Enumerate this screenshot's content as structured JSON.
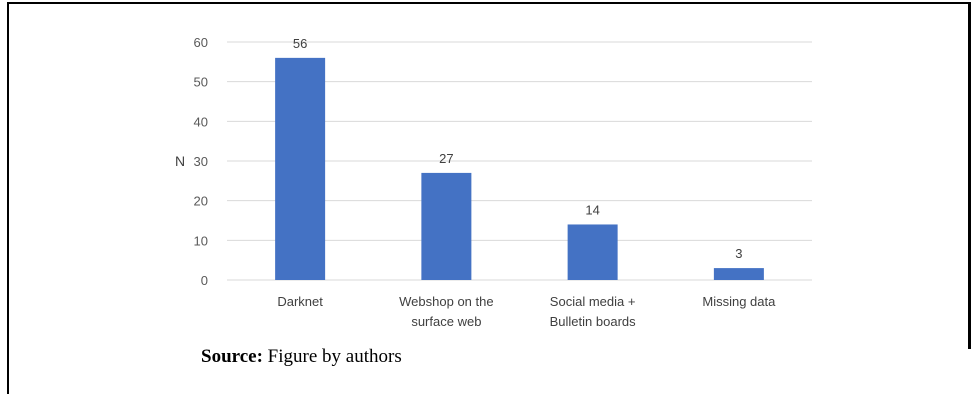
{
  "chart_data": {
    "type": "bar",
    "categories": [
      [
        "Darknet"
      ],
      [
        "Webshop on the",
        "surface web"
      ],
      [
        "Social media +",
        "Bulletin boards"
      ],
      [
        "Missing data"
      ]
    ],
    "values": [
      56,
      27,
      14,
      3
    ],
    "data_labels": [
      "56",
      "27",
      "14",
      "3"
    ],
    "xlabel": "",
    "ylabel": "N",
    "ylim": [
      0,
      60
    ],
    "yticks": [
      0,
      10,
      20,
      30,
      40,
      50,
      60
    ],
    "grid": true,
    "bar_color": "#4472C4",
    "grid_color": "#d9d9d9"
  },
  "caption": {
    "label": "Source:",
    "text": " Figure by authors"
  }
}
